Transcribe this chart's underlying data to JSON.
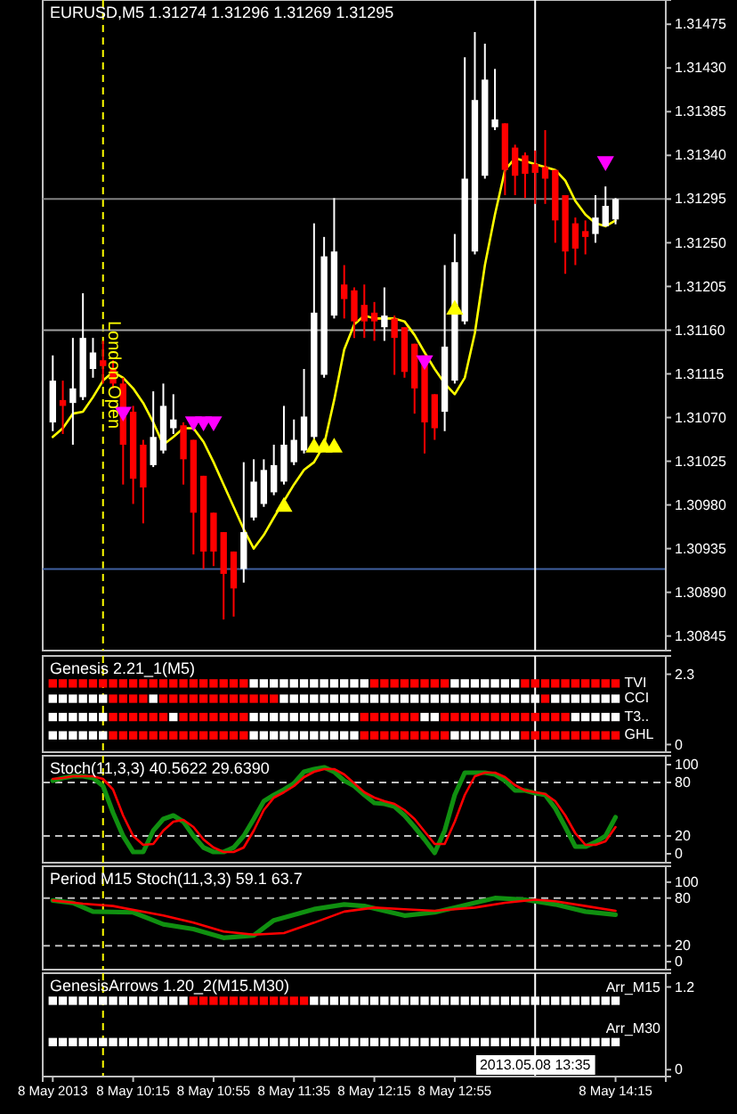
{
  "chart_data": [
    {
      "type": "candlestick",
      "title": "EURUSD,M5 1.31274 1.31296 1.31269 1.31295",
      "xlim": [
        "2013-05-08T09:30",
        "2013-05-08T14:40"
      ],
      "ylim": [
        1.3083,
        1.315
      ],
      "tick_labels": "y",
      "yticks": [
        1.30845,
        {
          "value": 1.3089,
          "label": "1.30890"
        },
        1.30935,
        {
          "value": 1.3098,
          "label": "1.30980"
        },
        1.31025,
        {
          "value": 1.3107,
          "label": "1.31070"
        },
        1.31115,
        {
          "value": 1.3116,
          "label": "1.31160"
        },
        1.31205,
        {
          "value": 1.3125,
          "label": "1.31250"
        },
        1.31295,
        {
          "value": 1.3134,
          "label": "1.31340"
        },
        1.31385,
        {
          "value": 1.3143,
          "label": "1.31430"
        },
        1.31475
      ],
      "x": [
        "2013-05-08T09:35",
        "2013-05-08T09:40",
        "2013-05-08T09:45",
        "2013-05-08T09:50",
        "2013-05-08T09:55",
        "2013-05-08T10:00",
        "2013-05-08T10:05",
        "2013-05-08T10:10",
        "2013-05-08T10:15",
        "2013-05-08T10:20",
        "2013-05-08T10:25",
        "2013-05-08T10:30",
        "2013-05-08T10:35",
        "2013-05-08T10:40",
        "2013-05-08T10:45",
        "2013-05-08T10:50",
        "2013-05-08T10:55",
        "2013-05-08T11:00",
        "2013-05-08T11:05",
        "2013-05-08T11:10",
        "2013-05-08T11:15",
        "2013-05-08T11:20",
        "2013-05-08T11:25",
        "2013-05-08T11:30",
        "2013-05-08T11:35",
        "2013-05-08T11:40",
        "2013-05-08T11:45",
        "2013-05-08T11:50",
        "2013-05-08T11:55",
        "2013-05-08T12:00",
        "2013-05-08T12:05",
        "2013-05-08T12:10",
        "2013-05-08T12:15",
        "2013-05-08T12:20",
        "2013-05-08T12:25",
        "2013-05-08T12:30",
        "2013-05-08T12:35",
        "2013-05-08T12:40",
        "2013-05-08T12:45",
        "2013-05-08T12:50",
        "2013-05-08T12:55",
        "2013-05-08T13:00",
        "2013-05-08T13:05",
        "2013-05-08T13:10",
        "2013-05-08T13:15",
        "2013-05-08T13:20",
        "2013-05-08T13:25",
        "2013-05-08T13:30",
        "2013-05-08T13:35",
        "2013-05-08T13:40",
        "2013-05-08T13:45",
        "2013-05-08T13:50",
        "2013-05-08T13:55",
        "2013-05-08T14:00",
        "2013-05-08T14:05",
        "2013-05-08T14:10",
        "2013-05-08T14:15"
      ],
      "series": [
        {
          "type": "candlestick",
          "ohlc": [
            [
              1.31065,
              1.31134,
              1.31056,
              1.31108
            ],
            [
              1.31088,
              1.31108,
              1.31053,
              1.31082
            ],
            [
              1.31085,
              1.31152,
              1.31042,
              1.311
            ],
            [
              1.31091,
              1.31198,
              1.31088,
              1.31152
            ],
            [
              1.3112,
              1.31152,
              1.31111,
              1.31137
            ],
            [
              1.31129,
              1.31149,
              1.31105,
              1.31123
            ],
            [
              1.3112,
              1.31129,
              1.311,
              1.31105
            ],
            [
              1.31105,
              1.31111,
              1.31001,
              1.31042
            ],
            [
              1.31076,
              1.31082,
              1.30981,
              1.31007
            ],
            [
              1.31042,
              1.31047,
              1.30961,
              1.30998
            ],
            [
              1.31021,
              1.31097,
              1.31019,
              1.3105
            ],
            [
              1.31036,
              1.31105,
              1.31033,
              1.31082
            ],
            [
              1.31059,
              1.31094,
              1.31053,
              1.31068
            ],
            [
              1.31062,
              1.31065,
              1.31001,
              1.31027
            ],
            [
              1.31047,
              1.31047,
              1.30929,
              1.30972
            ],
            [
              1.3101,
              1.3101,
              1.30914,
              1.30932
            ],
            [
              1.30972,
              1.30972,
              1.30917,
              1.30932
            ],
            [
              1.30952,
              1.30952,
              1.30862,
              1.30909
            ],
            [
              1.30932,
              1.30932,
              1.30865,
              1.30894
            ],
            [
              1.30914,
              1.31024,
              1.309,
              1.30952
            ],
            [
              1.30967,
              1.31027,
              1.30964,
              1.31004
            ],
            [
              1.30981,
              1.31027,
              1.30978,
              1.31016
            ],
            [
              1.30993,
              1.31042,
              1.3099,
              1.31021
            ],
            [
              1.31004,
              1.31082,
              1.31001,
              1.31042
            ],
            [
              1.31024,
              1.31068,
              1.31021,
              1.31047
            ],
            [
              1.31036,
              1.3112,
              1.31033,
              1.31071
            ],
            [
              1.3105,
              1.3127,
              1.31047,
              1.31178
            ],
            [
              1.31114,
              1.31256,
              1.31111,
              1.31236
            ],
            [
              1.31175,
              1.31296,
              1.31172,
              1.31241
            ],
            [
              1.31207,
              1.31227,
              1.31172,
              1.31192
            ],
            [
              1.31201,
              1.31204,
              1.31152,
              1.31169
            ],
            [
              1.31186,
              1.31207,
              1.31152,
              1.31169
            ],
            [
              1.31178,
              1.31189,
              1.31149,
              1.31169
            ],
            [
              1.31163,
              1.31204,
              1.31149,
              1.31175
            ],
            [
              1.31172,
              1.31175,
              1.31114,
              1.31152
            ],
            [
              1.31163,
              1.31163,
              1.31111,
              1.31117
            ],
            [
              1.31146,
              1.31146,
              1.31074,
              1.311
            ],
            [
              1.31134,
              1.31134,
              1.31033,
              1.31065
            ],
            [
              1.31094,
              1.31094,
              1.31047,
              1.31059
            ],
            [
              1.31076,
              1.31227,
              1.31056,
              1.31143
            ],
            [
              1.31108,
              1.31259,
              1.31105,
              1.3123
            ],
            [
              1.31169,
              1.31441,
              1.31166,
              1.31316
            ],
            [
              1.31241,
              1.31467,
              1.31238,
              1.31397
            ],
            [
              1.31319,
              1.31455,
              1.31316,
              1.31418
            ],
            [
              1.31369,
              1.31429,
              1.31366,
              1.31377
            ],
            [
              1.31373,
              1.31373,
              1.31299,
              1.31325
            ],
            [
              1.31348,
              1.31351,
              1.31299,
              1.31319
            ],
            [
              1.3134,
              1.31343,
              1.31296,
              1.31321
            ],
            [
              1.31331,
              1.31345,
              1.3129,
              1.31322
            ],
            [
              1.31328,
              1.31366,
              1.3129,
              1.31316
            ],
            [
              1.31325,
              1.31325,
              1.3125,
              1.31273
            ],
            [
              1.31299,
              1.31299,
              1.31218,
              1.31241
            ],
            [
              1.3127,
              1.31276,
              1.31227,
              1.31244
            ],
            [
              1.31262,
              1.31273,
              1.31238,
              1.31256
            ],
            [
              1.31259,
              1.31299,
              1.3125,
              1.31276
            ],
            [
              1.31267,
              1.31308,
              1.31267,
              1.31288
            ],
            [
              1.31274,
              1.31296,
              1.31269,
              1.31295
            ]
          ],
          "colors": [
            "#ffffff",
            "#ff0000",
            "#ffffff",
            "#ffffff",
            "#ffffff",
            "#ff0000",
            "#ff0000",
            "#ff0000",
            "#ff0000",
            "#ff0000",
            "#ffffff",
            "#ffffff",
            "#ffffff",
            "#ff0000",
            "#ff0000",
            "#ff0000",
            "#ff0000",
            "#ff0000",
            "#ff0000",
            "#ffffff",
            "#ffffff",
            "#ffffff",
            "#ffffff",
            "#ffffff",
            "#ffffff",
            "#ffffff",
            "#ffffff",
            "#ffffff",
            "#ffffff",
            "#ff0000",
            "#ff0000",
            "#ff0000",
            "#ff0000",
            "#ffffff",
            "#ff0000",
            "#ff0000",
            "#ff0000",
            "#ff0000",
            "#ff0000",
            "#ffffff",
            "#ffffff",
            "#ffffff",
            "#ffffff",
            "#ffffff",
            "#ffffff",
            "#ff0000",
            "#ff0000",
            "#ff0000",
            "#ff0000",
            "#ff0000",
            "#ff0000",
            "#ff0000",
            "#ff0000",
            "#ff0000",
            "#ffffff",
            "#ffffff",
            "#ffffff"
          ]
        },
        {
          "type": "line",
          "color": "#ffff00",
          "values": [
            1.3105,
            1.31059,
            1.31074,
            1.31076,
            1.31091,
            1.31108,
            1.31117,
            1.31111,
            1.311,
            1.31085,
            1.31065,
            1.31042,
            1.3105,
            1.31059,
            1.31059,
            1.31045,
            1.31024,
            1.31001,
            1.30978,
            1.30955,
            1.30935,
            1.30949,
            1.30967,
            1.30984,
            1.31001,
            1.31016,
            1.31024,
            1.31042,
            1.31088,
            1.3114,
            1.31166,
            1.31175,
            1.31172,
            1.31172,
            1.31172,
            1.31169,
            1.31155,
            1.31137,
            1.3112,
            1.31105,
            1.31094,
            1.31111,
            1.31157,
            1.31227,
            1.31279,
            1.31325,
            1.31337,
            1.31334,
            1.31331,
            1.31328,
            1.31325,
            1.31314,
            1.31293,
            1.31279,
            1.3127,
            1.31267,
            1.31273
          ]
        },
        {
          "type": "scatter",
          "marker": "triangle-down",
          "color": "#ff00ff",
          "x": [
            "2013-05-08T10:10",
            "2013-05-08T10:45",
            "2013-05-08T10:50",
            "2013-05-08T10:55",
            "2013-05-08T12:40",
            "2013-05-08T14:10"
          ],
          "values": [
            1.31076,
            1.31066,
            1.31066,
            1.31066,
            1.31129,
            1.31334
          ]
        },
        {
          "type": "scatter",
          "marker": "triangle",
          "color": "#ffff00",
          "x": [
            "2013-05-08T11:30",
            "2013-05-08T11:45",
            "2013-05-08T11:50",
            "2013-05-08T11:55",
            "2013-05-08T12:55"
          ],
          "values": [
            1.30978,
            1.31039,
            1.31039,
            1.31039,
            1.31181
          ]
        }
      ],
      "ref_lines": [
        {
          "axis": "x",
          "value": "2013-05-08T10:00",
          "label": "London Open",
          "color": "#ffff00",
          "line_style": "dashed"
        },
        {
          "axis": "x",
          "value": "2013-05-08T13:35",
          "color": "#ffffff",
          "line_style": "solid"
        },
        {
          "axis": "y",
          "value": 1.31295,
          "color": "#808080",
          "line_style": "solid"
        },
        {
          "axis": "y",
          "value": 1.3116,
          "color": "#a0a0a0",
          "line_style": "solid"
        },
        {
          "axis": "y",
          "value": 1.30914,
          "color": "#4060a0",
          "line_style": "solid"
        }
      ]
    },
    {
      "type": "scatter",
      "title": "Genesis 2.21_1(M5)",
      "xlim": [
        "2013-05-08T09:30",
        "2013-05-08T14:40"
      ],
      "ylim": [
        -0.25,
        2.9
      ],
      "yticks": [
        0,
        2.3
      ],
      "tick_labels": "y",
      "x": [
        "2013-05-08T09:35",
        "2013-05-08T09:40",
        "2013-05-08T09:45",
        "2013-05-08T09:50",
        "2013-05-08T09:55",
        "2013-05-08T10:00",
        "2013-05-08T10:05",
        "2013-05-08T10:10",
        "2013-05-08T10:15",
        "2013-05-08T10:20",
        "2013-05-08T10:25",
        "2013-05-08T10:30",
        "2013-05-08T10:35",
        "2013-05-08T10:40",
        "2013-05-08T10:45",
        "2013-05-08T10:50",
        "2013-05-08T10:55",
        "2013-05-08T11:00",
        "2013-05-08T11:05",
        "2013-05-08T11:10",
        "2013-05-08T11:15",
        "2013-05-08T11:20",
        "2013-05-08T11:25",
        "2013-05-08T11:30",
        "2013-05-08T11:35",
        "2013-05-08T11:40",
        "2013-05-08T11:45",
        "2013-05-08T11:50",
        "2013-05-08T11:55",
        "2013-05-08T12:00",
        "2013-05-08T12:05",
        "2013-05-08T12:10",
        "2013-05-08T12:15",
        "2013-05-08T12:20",
        "2013-05-08T12:25",
        "2013-05-08T12:30",
        "2013-05-08T12:35",
        "2013-05-08T12:40",
        "2013-05-08T12:45",
        "2013-05-08T12:50",
        "2013-05-08T12:55",
        "2013-05-08T13:00",
        "2013-05-08T13:05",
        "2013-05-08T13:10",
        "2013-05-08T13:15",
        "2013-05-08T13:20",
        "2013-05-08T13:25",
        "2013-05-08T13:30",
        "2013-05-08T13:35",
        "2013-05-08T13:40",
        "2013-05-08T13:45",
        "2013-05-08T13:50",
        "2013-05-08T13:55",
        "2013-05-08T14:00",
        "2013-05-08T14:05",
        "2013-05-08T14:10",
        "2013-05-08T14:15"
      ],
      "series": [
        {
          "name": "TVI",
          "marker": "square",
          "values": [
            2,
            2,
            2,
            2,
            2,
            2,
            2,
            2,
            2,
            2,
            2,
            2,
            2,
            2,
            2,
            2,
            2,
            2,
            2,
            2,
            2,
            2,
            2,
            2,
            2,
            2,
            2,
            2,
            2,
            2,
            2,
            2,
            2,
            2,
            2,
            2,
            2,
            2,
            2,
            2,
            2,
            2,
            2,
            2,
            2,
            2,
            2,
            2,
            2,
            2,
            2,
            2,
            2,
            2,
            2,
            2,
            2
          ],
          "colors": [
            "#ff0000",
            "#ff0000",
            "#ff0000",
            "#ff0000",
            "#ff0000",
            "#ff0000",
            "#ff0000",
            "#ff0000",
            "#ff0000",
            "#ff0000",
            "#ff0000",
            "#ff0000",
            "#ff0000",
            "#ff0000",
            "#ff0000",
            "#ff0000",
            "#ff0000",
            "#ff0000",
            "#ff0000",
            "#ff0000",
            "#ffffff",
            "#ffffff",
            "#ffffff",
            "#ffffff",
            "#ffffff",
            "#ffffff",
            "#ffffff",
            "#ffffff",
            "#ffffff",
            "#ffffff",
            "#ffffff",
            "#ffffff",
            "#ff0000",
            "#ff0000",
            "#ff0000",
            "#ff0000",
            "#ff0000",
            "#ff0000",
            "#ff0000",
            "#ff0000",
            "#ffffff",
            "#ffffff",
            "#ffffff",
            "#ffffff",
            "#ffffff",
            "#ffffff",
            "#ffffff",
            "#ff0000",
            "#ff0000",
            "#ff0000",
            "#ff0000",
            "#ff0000",
            "#ff0000",
            "#ff0000",
            "#ff0000",
            "#ff0000",
            "#ff0000"
          ]
        },
        {
          "name": "CCI",
          "marker": "square",
          "values": [
            1.5,
            1.5,
            1.5,
            1.5,
            1.5,
            1.5,
            1.5,
            1.5,
            1.5,
            1.5,
            1.5,
            1.5,
            1.5,
            1.5,
            1.5,
            1.5,
            1.5,
            1.5,
            1.5,
            1.5,
            1.5,
            1.5,
            1.5,
            1.5,
            1.5,
            1.5,
            1.5,
            1.5,
            1.5,
            1.5,
            1.5,
            1.5,
            1.5,
            1.5,
            1.5,
            1.5,
            1.5,
            1.5,
            1.5,
            1.5,
            1.5,
            1.5,
            1.5,
            1.5,
            1.5,
            1.5,
            1.5,
            1.5,
            1.5,
            1.5,
            1.5,
            1.5,
            1.5,
            1.5,
            1.5,
            1.5,
            1.5
          ],
          "colors": [
            "#ffffff",
            "#ffffff",
            "#ffffff",
            "#ffffff",
            "#ffffff",
            "#ffffff",
            "#ff0000",
            "#ff0000",
            "#ff0000",
            "#ff0000",
            "#ffffff",
            "#ff0000",
            "#ff0000",
            "#ff0000",
            "#ff0000",
            "#ff0000",
            "#ff0000",
            "#ff0000",
            "#ff0000",
            "#ff0000",
            "#ff0000",
            "#ff0000",
            "#ff0000",
            "#ffffff",
            "#ffffff",
            "#ffffff",
            "#ffffff",
            "#ffffff",
            "#ffffff",
            "#ffffff",
            "#ffffff",
            "#ffffff",
            "#ffffff",
            "#ffffff",
            "#ffffff",
            "#ffffff",
            "#ffffff",
            "#ffffff",
            "#ffffff",
            "#ffffff",
            "#ffffff",
            "#ffffff",
            "#ffffff",
            "#ffffff",
            "#ffffff",
            "#ffffff",
            "#ffffff",
            "#ffffff",
            "#ffffff",
            "#ff0000",
            "#ffffff",
            "#ffffff",
            "#ffffff",
            "#ffffff",
            "#ffffff",
            "#ffffff",
            "#ffffff"
          ]
        },
        {
          "name": "T3..",
          "marker": "square",
          "values": [
            0.9,
            0.9,
            0.9,
            0.9,
            0.9,
            0.9,
            0.9,
            0.9,
            0.9,
            0.9,
            0.9,
            0.9,
            0.9,
            0.9,
            0.9,
            0.9,
            0.9,
            0.9,
            0.9,
            0.9,
            0.9,
            0.9,
            0.9,
            0.9,
            0.9,
            0.9,
            0.9,
            0.9,
            0.9,
            0.9,
            0.9,
            0.9,
            0.9,
            0.9,
            0.9,
            0.9,
            0.9,
            0.9,
            0.9,
            0.9,
            0.9,
            0.9,
            0.9,
            0.9,
            0.9,
            0.9,
            0.9,
            0.9,
            0.9,
            0.9,
            0.9,
            0.9,
            0.9,
            0.9,
            0.9,
            0.9,
            0.9
          ],
          "colors": [
            "#ffffff",
            "#ffffff",
            "#ffffff",
            "#ffffff",
            "#ffffff",
            "#ffffff",
            "#ff0000",
            "#ff0000",
            "#ff0000",
            "#ff0000",
            "#ff0000",
            "#ff0000",
            "#ffffff",
            "#ff0000",
            "#ff0000",
            "#ff0000",
            "#ff0000",
            "#ff0000",
            "#ff0000",
            "#ff0000",
            "#ffffff",
            "#ffffff",
            "#ffffff",
            "#ffffff",
            "#ffffff",
            "#ffffff",
            "#ffffff",
            "#ffffff",
            "#ffffff",
            "#ffffff",
            "#ffffff",
            "#ff0000",
            "#ff0000",
            "#ff0000",
            "#ff0000",
            "#ff0000",
            "#ff0000",
            "#ffffff",
            "#ffffff",
            "#ff0000",
            "#ff0000",
            "#ff0000",
            "#ff0000",
            "#ff0000",
            "#ff0000",
            "#ff0000",
            "#ff0000",
            "#ff0000",
            "#ff0000",
            "#ff0000",
            "#ff0000",
            "#ff0000",
            "#ffffff",
            "#ffffff",
            "#ffffff",
            "#ffffff",
            "#ffffff"
          ]
        },
        {
          "name": "GHL",
          "marker": "square",
          "values": [
            0.3,
            0.3,
            0.3,
            0.3,
            0.3,
            0.3,
            0.3,
            0.3,
            0.3,
            0.3,
            0.3,
            0.3,
            0.3,
            0.3,
            0.3,
            0.3,
            0.3,
            0.3,
            0.3,
            0.3,
            0.3,
            0.3,
            0.3,
            0.3,
            0.3,
            0.3,
            0.3,
            0.3,
            0.3,
            0.3,
            0.3,
            0.3,
            0.3,
            0.3,
            0.3,
            0.3,
            0.3,
            0.3,
            0.3,
            0.3,
            0.3,
            0.3,
            0.3,
            0.3,
            0.3,
            0.3,
            0.3,
            0.3,
            0.3,
            0.3,
            0.3,
            0.3,
            0.3,
            0.3,
            0.3,
            0.3,
            0.3
          ],
          "colors": [
            "#ffffff",
            "#ffffff",
            "#ffffff",
            "#ffffff",
            "#ffffff",
            "#ffffff",
            "#ff0000",
            "#ff0000",
            "#ff0000",
            "#ff0000",
            "#ff0000",
            "#ff0000",
            "#ff0000",
            "#ff0000",
            "#ff0000",
            "#ff0000",
            "#ff0000",
            "#ff0000",
            "#ff0000",
            "#ff0000",
            "#ffffff",
            "#ffffff",
            "#ffffff",
            "#ffffff",
            "#ffffff",
            "#ffffff",
            "#ffffff",
            "#ffffff",
            "#ffffff",
            "#ffffff",
            "#ffffff",
            "#ff0000",
            "#ff0000",
            "#ff0000",
            "#ff0000",
            "#ff0000",
            "#ff0000",
            "#ff0000",
            "#ff0000",
            "#ff0000",
            "#ffffff",
            "#ffffff",
            "#ffffff",
            "#ffffff",
            "#ffffff",
            "#ffffff",
            "#ffffff",
            "#ff0000",
            "#ff0000",
            "#ff0000",
            "#ff0000",
            "#ff0000",
            "#ff0000",
            "#ff0000",
            "#ff0000",
            "#ff0000",
            "#ff0000"
          ]
        }
      ],
      "ref_lines": [
        {
          "axis": "x",
          "value": "2013-05-08T10:00",
          "color": "#ffff00",
          "line_style": "dashed"
        },
        {
          "axis": "x",
          "value": "2013-05-08T13:35",
          "color": "#ffffff",
          "line_style": "solid"
        }
      ]
    },
    {
      "type": "line",
      "title": "Stoch(11,3,3) 40.5622 29.6390",
      "xlim": [
        "2013-05-08T09:30",
        "2013-05-08T14:40"
      ],
      "ylim": [
        -10,
        110
      ],
      "yticks": [
        0,
        20,
        80,
        100
      ],
      "tick_labels": "y",
      "x": [
        "2013-05-08T09:35",
        "2013-05-08T09:40",
        "2013-05-08T09:45",
        "2013-05-08T09:50",
        "2013-05-08T09:55",
        "2013-05-08T10:00",
        "2013-05-08T10:05",
        "2013-05-08T10:10",
        "2013-05-08T10:15",
        "2013-05-08T10:20",
        "2013-05-08T10:25",
        "2013-05-08T10:30",
        "2013-05-08T10:35",
        "2013-05-08T10:40",
        "2013-05-08T10:45",
        "2013-05-08T10:50",
        "2013-05-08T10:55",
        "2013-05-08T11:00",
        "2013-05-08T11:05",
        "2013-05-08T11:10",
        "2013-05-08T11:15",
        "2013-05-08T11:20",
        "2013-05-08T11:25",
        "2013-05-08T11:30",
        "2013-05-08T11:35",
        "2013-05-08T11:40",
        "2013-05-08T11:45",
        "2013-05-08T11:50",
        "2013-05-08T11:55",
        "2013-05-08T12:00",
        "2013-05-08T12:05",
        "2013-05-08T12:10",
        "2013-05-08T12:15",
        "2013-05-08T12:20",
        "2013-05-08T12:25",
        "2013-05-08T12:30",
        "2013-05-08T12:35",
        "2013-05-08T12:40",
        "2013-05-08T12:45",
        "2013-05-08T12:50",
        "2013-05-08T12:55",
        "2013-05-08T13:00",
        "2013-05-08T13:05",
        "2013-05-08T13:10",
        "2013-05-08T13:15",
        "2013-05-08T13:20",
        "2013-05-08T13:25",
        "2013-05-08T13:30",
        "2013-05-08T13:35",
        "2013-05-08T13:40",
        "2013-05-08T13:45",
        "2013-05-08T13:50",
        "2013-05-08T13:55",
        "2013-05-08T14:00",
        "2013-05-08T14:05",
        "2013-05-08T14:10",
        "2013-05-08T14:15"
      ],
      "series": [
        {
          "color": "#109010",
          "values": [
            82,
            85,
            87,
            87,
            85,
            76,
            46,
            20,
            2,
            2,
            26,
            39,
            43,
            36,
            20,
            7,
            2,
            2,
            7,
            20,
            39,
            59,
            66,
            72,
            79,
            92,
            95,
            97,
            92,
            82,
            76,
            66,
            57,
            56,
            53,
            43,
            30,
            16,
            1,
            26,
            66,
            91,
            91,
            91,
            89,
            82,
            71,
            71,
            68,
            66,
            51,
            30,
            8,
            8,
            13,
            20,
            41
          ]
        },
        {
          "color": "#ff0000",
          "values": [
            84,
            85,
            87,
            87,
            87,
            84,
            72,
            43,
            20,
            10,
            11,
            26,
            36,
            38,
            30,
            16,
            7,
            2,
            2,
            7,
            26,
            49,
            63,
            69,
            76,
            86,
            92,
            95,
            95,
            89,
            79,
            69,
            63,
            59,
            56,
            49,
            39,
            25,
            11,
            11,
            36,
            66,
            87,
            91,
            91,
            86,
            77,
            71,
            69,
            67,
            59,
            43,
            23,
            10,
            10,
            14,
            30
          ]
        }
      ],
      "ref_lines": [
        {
          "axis": "y",
          "value": 20,
          "color": "#c0c0c0",
          "line_style": "dashed"
        },
        {
          "axis": "y",
          "value": 80,
          "color": "#c0c0c0",
          "line_style": "dashed"
        },
        {
          "axis": "x",
          "value": "2013-05-08T10:00",
          "color": "#ffff00",
          "line_style": "dashed"
        },
        {
          "axis": "x",
          "value": "2013-05-08T13:35",
          "color": "#ffffff",
          "line_style": "solid"
        }
      ]
    },
    {
      "type": "line",
      "title": "Period M15 Stoch(11,3,3) 59.1 63.7",
      "xlim": [
        "2013-05-08T09:30",
        "2013-05-08T14:40"
      ],
      "ylim": [
        -10,
        120
      ],
      "yticks": [
        0,
        20,
        80,
        100
      ],
      "tick_labels": "y",
      "series": [
        {
          "color": "#109010",
          "x": [
            "2013-05-08T09:35",
            "2013-05-08T09:45",
            "2013-05-08T09:55",
            "2013-05-08T10:15",
            "2013-05-08T10:30",
            "2013-05-08T10:45",
            "2013-05-08T11:00",
            "2013-05-08T11:15",
            "2013-05-08T11:25",
            "2013-05-08T11:45",
            "2013-05-08T12:00",
            "2013-05-08T12:10",
            "2013-05-08T12:30",
            "2013-05-08T12:45",
            "2013-05-08T13:05",
            "2013-05-08T13:15",
            "2013-05-08T13:30",
            "2013-05-08T13:45",
            "2013-05-08T14:00",
            "2013-05-08T14:15"
          ],
          "values": [
            77,
            74,
            63,
            62,
            47,
            41,
            30,
            33,
            52,
            66,
            72,
            70,
            58,
            62,
            74,
            80,
            78,
            72,
            63,
            59
          ]
        },
        {
          "color": "#ff0000",
          "x": [
            "2013-05-08T09:35",
            "2013-05-08T09:50",
            "2013-05-08T10:05",
            "2013-05-08T10:30",
            "2013-05-08T10:45",
            "2013-05-08T11:00",
            "2013-05-08T11:15",
            "2013-05-08T11:30",
            "2013-05-08T11:45",
            "2013-05-08T12:00",
            "2013-05-08T12:15",
            "2013-05-08T12:30",
            "2013-05-08T12:45",
            "2013-05-08T13:05",
            "2013-05-08T13:20",
            "2013-05-08T13:35",
            "2013-05-08T13:45",
            "2013-05-08T14:00",
            "2013-05-08T14:15"
          ],
          "values": [
            77,
            73,
            70,
            58,
            49,
            38,
            34,
            36,
            49,
            63,
            68,
            66,
            64,
            68,
            74,
            78,
            76,
            70,
            64
          ]
        }
      ],
      "ref_lines": [
        {
          "axis": "y",
          "value": 20,
          "color": "#c0c0c0",
          "line_style": "dashed"
        },
        {
          "axis": "y",
          "value": 80,
          "color": "#c0c0c0",
          "line_style": "dashed"
        },
        {
          "axis": "x",
          "value": "2013-05-08T10:00",
          "color": "#ffff00",
          "line_style": "dashed"
        },
        {
          "axis": "x",
          "value": "2013-05-08T13:35",
          "color": "#ffffff",
          "line_style": "solid"
        }
      ]
    },
    {
      "type": "scatter",
      "title": "GenesisArrows 1.20_2(M15.M30)",
      "xlim": [
        "2013-05-08T09:30",
        "2013-05-08T14:40"
      ],
      "ylim": [
        -0.1,
        1.4
      ],
      "yticks": [
        0,
        1.2
      ],
      "xticks": [
        {
          "value": "2013-05-08T09:35",
          "label": "8 May 2013"
        },
        {
          "value": "2013-05-08T10:15",
          "label": "8 May 10:15"
        },
        {
          "value": "2013-05-08T10:55",
          "label": "8 May 10:55"
        },
        {
          "value": "2013-05-08T11:35",
          "label": "8 May 11:35"
        },
        {
          "value": "2013-05-08T12:15",
          "label": "8 May 12:15"
        },
        {
          "value": "2013-05-08T12:55",
          "label": "8 May 12:55"
        },
        {
          "value": "2013-05-08T14:15",
          "label": "8 May 14:15"
        }
      ],
      "x": [
        "2013-05-08T09:35",
        "2013-05-08T09:40",
        "2013-05-08T09:45",
        "2013-05-08T09:50",
        "2013-05-08T09:55",
        "2013-05-08T10:00",
        "2013-05-08T10:05",
        "2013-05-08T10:10",
        "2013-05-08T10:15",
        "2013-05-08T10:20",
        "2013-05-08T10:25",
        "2013-05-08T10:30",
        "2013-05-08T10:35",
        "2013-05-08T10:40",
        "2013-05-08T10:45",
        "2013-05-08T10:50",
        "2013-05-08T10:55",
        "2013-05-08T11:00",
        "2013-05-08T11:05",
        "2013-05-08T11:10",
        "2013-05-08T11:15",
        "2013-05-08T11:20",
        "2013-05-08T11:25",
        "2013-05-08T11:30",
        "2013-05-08T11:35",
        "2013-05-08T11:40",
        "2013-05-08T11:45",
        "2013-05-08T11:50",
        "2013-05-08T11:55",
        "2013-05-08T12:00",
        "2013-05-08T12:05",
        "2013-05-08T12:10",
        "2013-05-08T12:15",
        "2013-05-08T12:20",
        "2013-05-08T12:25",
        "2013-05-08T12:30",
        "2013-05-08T12:35",
        "2013-05-08T12:40",
        "2013-05-08T12:45",
        "2013-05-08T12:50",
        "2013-05-08T12:55",
        "2013-05-08T13:00",
        "2013-05-08T13:05",
        "2013-05-08T13:10",
        "2013-05-08T13:15",
        "2013-05-08T13:20",
        "2013-05-08T13:25",
        "2013-05-08T13:30",
        "2013-05-08T13:35",
        "2013-05-08T13:40",
        "2013-05-08T13:45",
        "2013-05-08T13:50",
        "2013-05-08T13:55",
        "2013-05-08T14:00",
        "2013-05-08T14:05",
        "2013-05-08T14:10",
        "2013-05-08T14:15"
      ],
      "series": [
        {
          "name": "Arr_M15",
          "marker": "square",
          "values": [
            1,
            1,
            1,
            1,
            1,
            1,
            1,
            1,
            1,
            1,
            1,
            1,
            1,
            1,
            1,
            1,
            1,
            1,
            1,
            1,
            1,
            1,
            1,
            1,
            1,
            1,
            1,
            1,
            1,
            1,
            1,
            1,
            1,
            1,
            1,
            1,
            1,
            1,
            1,
            1,
            1,
            1,
            1,
            1,
            1,
            1,
            1,
            1,
            1,
            1,
            1,
            1,
            1,
            1,
            1,
            1,
            1
          ],
          "colors": [
            "#ffffff",
            "#ffffff",
            "#ffffff",
            "#ffffff",
            "#ffffff",
            "#ffffff",
            "#ffffff",
            "#ffffff",
            "#ffffff",
            "#ffffff",
            "#ffffff",
            "#ffffff",
            "#ffffff",
            "#ffffff",
            "#ff0000",
            "#ff0000",
            "#ff0000",
            "#ff0000",
            "#ff0000",
            "#ff0000",
            "#ff0000",
            "#ff0000",
            "#ff0000",
            "#ff0000",
            "#ff0000",
            "#ff0000",
            "#ffffff",
            "#ffffff",
            "#ffffff",
            "#ffffff",
            "#ffffff",
            "#ffffff",
            "#ffffff",
            "#ffffff",
            "#ffffff",
            "#ffffff",
            "#ffffff",
            "#ffffff",
            "#ffffff",
            "#ffffff",
            "#ffffff",
            "#ffffff",
            "#ffffff",
            "#ffffff",
            "#ffffff",
            "#ffffff",
            "#ffffff",
            "#ffffff",
            "#ffffff",
            "#ffffff",
            "#ffffff",
            "#ffffff",
            "#ffffff",
            "#ffffff",
            "#ffffff",
            "#ffffff",
            "#ffffff"
          ]
        },
        {
          "name": "Arr_M30",
          "marker": "square",
          "color": "#ffffff",
          "values": [
            0.4,
            0.4,
            0.4,
            0.4,
            0.4,
            0.4,
            0.4,
            0.4,
            0.4,
            0.4,
            0.4,
            0.4,
            0.4,
            0.4,
            0.4,
            0.4,
            0.4,
            0.4,
            0.4,
            0.4,
            0.4,
            0.4,
            0.4,
            0.4,
            0.4,
            0.4,
            0.4,
            0.4,
            0.4,
            0.4,
            0.4,
            0.4,
            0.4,
            0.4,
            0.4,
            0.4,
            0.4,
            0.4,
            0.4,
            0.4,
            0.4,
            0.4,
            0.4,
            0.4,
            0.4,
            0.4,
            0.4,
            0.4,
            0.4,
            0.4,
            0.4,
            0.4,
            0.4,
            0.4,
            0.4,
            0.4,
            0.4
          ]
        }
      ],
      "ref_lines": [
        {
          "axis": "x",
          "value": "2013-05-08T10:00",
          "color": "#ffff00",
          "line_style": "dashed"
        },
        {
          "axis": "x",
          "value": "2013-05-08T13:35",
          "label": "2013.05.08 13:35",
          "color": "#ffffff",
          "line_style": "solid"
        }
      ]
    }
  ]
}
